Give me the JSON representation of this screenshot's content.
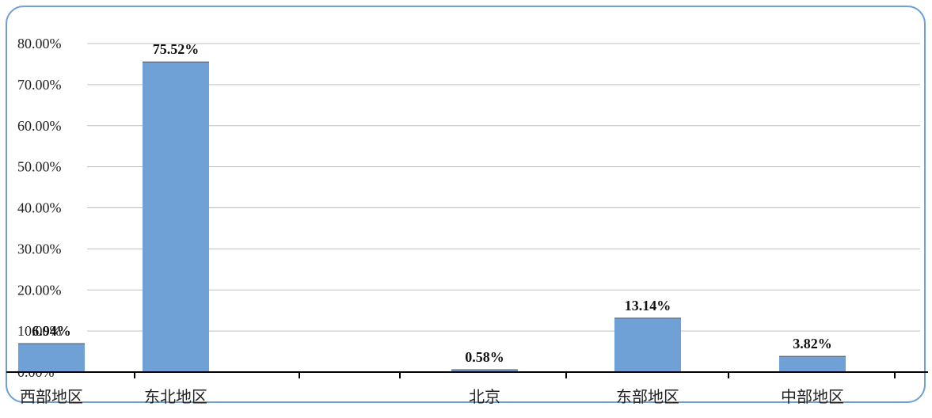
{
  "chart_data": {
    "type": "bar",
    "categories": [
      "西部地区",
      "东北地区",
      "北京",
      "东部地区",
      "中部地区"
    ],
    "values": [
      6.94,
      75.52,
      0.58,
      13.14,
      3.82
    ],
    "value_labels": [
      "6.94%",
      "75.52%",
      "0.58%",
      "13.14%",
      "3.82%"
    ],
    "yticks": [
      "0.00%",
      "10.00%",
      "20.00%",
      "30.00%",
      "40.00%",
      "50.00%",
      "60.00%",
      "70.00%",
      "80.00%"
    ],
    "ylim": [
      0,
      80
    ],
    "title": "",
    "xlabel": "",
    "ylabel": "",
    "grid": true,
    "legend": "none",
    "colors": {
      "bar": "#6fa1d6",
      "frame": "#6fa1d6",
      "gridline": "#bfbfbf",
      "axis": "#000000"
    }
  }
}
